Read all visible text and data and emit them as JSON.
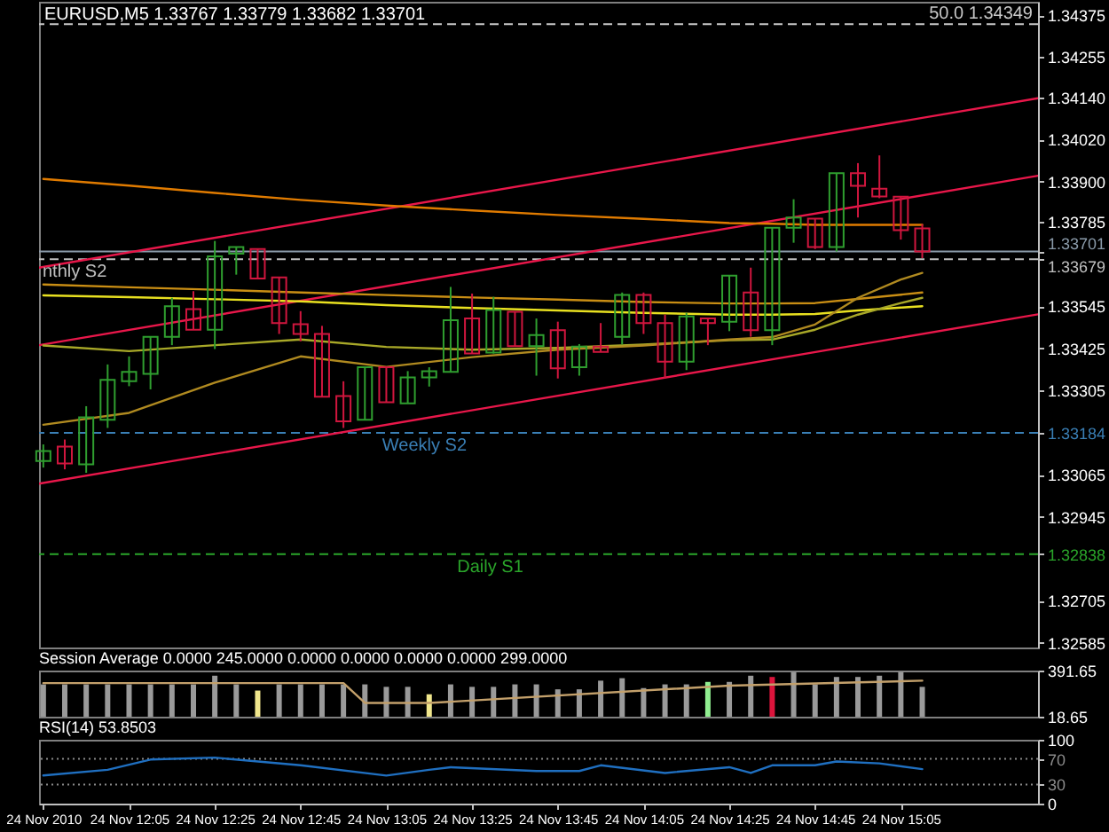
{
  "chart_data": [
    {
      "type": "candlestick",
      "title": "EURUSD,M5 1.33767 1.33779 1.33682 1.33701",
      "x": [
        "2010-11-24T11:45",
        "2010-11-24T11:50",
        "2010-11-24T11:55",
        "2010-11-24T12:00",
        "2010-11-24T12:05",
        "2010-11-24T12:10",
        "2010-11-24T12:15",
        "2010-11-24T12:20",
        "2010-11-24T12:25",
        "2010-11-24T12:30",
        "2010-11-24T12:35",
        "2010-11-24T12:40",
        "2010-11-24T12:45",
        "2010-11-24T12:50",
        "2010-11-24T12:55",
        "2010-11-24T13:00",
        "2010-11-24T13:05",
        "2010-11-24T13:10",
        "2010-11-24T13:15",
        "2010-11-24T13:20",
        "2010-11-24T13:25",
        "2010-11-24T13:30",
        "2010-11-24T13:35",
        "2010-11-24T13:40",
        "2010-11-24T13:45",
        "2010-11-24T13:50",
        "2010-11-24T13:55",
        "2010-11-24T14:00",
        "2010-11-24T14:05",
        "2010-11-24T14:10",
        "2010-11-24T14:15",
        "2010-11-24T14:20",
        "2010-11-24T14:25",
        "2010-11-24T14:30",
        "2010-11-24T14:35",
        "2010-11-24T14:40",
        "2010-11-24T14:45",
        "2010-11-24T14:50",
        "2010-11-24T14:55",
        "2010-11-24T15:00",
        "2010-11-24T15:05",
        "2010-11-24T15:10"
      ],
      "ohlc": [
        [
          1.33104,
          1.33151,
          1.33085,
          1.33132
        ],
        [
          1.33145,
          1.33165,
          1.3308,
          1.33097
        ],
        [
          1.33094,
          1.3326,
          1.3307,
          1.33228
        ],
        [
          1.33221,
          1.33379,
          1.33198,
          1.33335
        ],
        [
          1.33331,
          1.33402,
          1.33317,
          1.33358
        ],
        [
          1.33352,
          1.33458,
          1.33308,
          1.33458
        ],
        [
          1.33458,
          1.33569,
          1.33434,
          1.33545
        ],
        [
          1.33537,
          1.33588,
          1.33478,
          1.33478
        ],
        [
          1.33478,
          1.33731,
          1.33423,
          1.33687
        ],
        [
          1.33695,
          1.33714,
          1.33635,
          1.33714
        ],
        [
          1.33708,
          1.33708,
          1.33624,
          1.33624
        ],
        [
          1.33627,
          1.33627,
          1.33466,
          1.33497
        ],
        [
          1.33494,
          1.33531,
          1.33445,
          1.33466
        ],
        [
          1.33466,
          1.33489,
          1.33287,
          1.33287
        ],
        [
          1.33289,
          1.33331,
          1.33198,
          1.33217
        ],
        [
          1.33221,
          1.33371,
          1.33221,
          1.33371
        ],
        [
          1.33371,
          1.33371,
          1.33271,
          1.33271
        ],
        [
          1.33268,
          1.3336,
          1.33268,
          1.33342
        ],
        [
          1.33342,
          1.33371,
          1.33316,
          1.3336
        ],
        [
          1.33358,
          1.336,
          1.33358,
          1.33505
        ],
        [
          1.3351,
          1.33581,
          1.3341,
          1.3341
        ],
        [
          1.33413,
          1.33572,
          1.3341,
          1.33534
        ],
        [
          1.33529,
          1.33529,
          1.33431,
          1.33431
        ],
        [
          1.33431,
          1.3351,
          1.33347,
          1.33463
        ],
        [
          1.33477,
          1.33501,
          1.33339,
          1.33368
        ],
        [
          1.33371,
          1.33437,
          1.33347,
          1.3343
        ],
        [
          1.3343,
          1.33497,
          1.33415,
          1.33415
        ],
        [
          1.33458,
          1.33584,
          1.33436,
          1.33577
        ],
        [
          1.33577,
          1.33584,
          1.33466,
          1.33497
        ],
        [
          1.33497,
          1.33521,
          1.33339,
          1.33387
        ],
        [
          1.33387,
          1.33526,
          1.33363,
          1.33516
        ],
        [
          1.3351,
          1.3351,
          1.33434,
          1.33497
        ],
        [
          1.33501,
          1.33632,
          1.33474,
          1.33632
        ],
        [
          1.33584,
          1.33655,
          1.33458,
          1.33477
        ],
        [
          1.33477,
          1.33769,
          1.33434,
          1.33769
        ],
        [
          1.33769,
          1.3385,
          1.33726,
          1.33798
        ],
        [
          1.33795,
          1.33795,
          1.33708,
          1.33714
        ],
        [
          1.33714,
          1.33924,
          1.33701,
          1.33924
        ],
        [
          1.33924,
          1.33953,
          1.33798,
          1.33888
        ],
        [
          1.3388,
          1.33975,
          1.33853,
          1.33858
        ],
        [
          1.33857,
          1.33857,
          1.33735,
          1.33762
        ],
        [
          1.33767,
          1.33779,
          1.33682,
          1.33701
        ]
      ],
      "colors": [
        "#2f9e2f",
        "#d0163e",
        "#2f9e2f",
        "#2f9e2f",
        "#2f9e2f",
        "#2f9e2f",
        "#2f9e2f",
        "#d0163e",
        "#2f9e2f",
        "#2f9e2f",
        "#d0163e",
        "#d0163e",
        "#d0163e",
        "#d0163e",
        "#d0163e",
        "#2f9e2f",
        "#d0163e",
        "#2f9e2f",
        "#2f9e2f",
        "#2f9e2f",
        "#d0163e",
        "#2f9e2f",
        "#d0163e",
        "#2f9e2f",
        "#d0163e",
        "#2f9e2f",
        "#d0163e",
        "#2f9e2f",
        "#d0163e",
        "#d0163e",
        "#2f9e2f",
        "#d0163e",
        "#2f9e2f",
        "#d0163e",
        "#2f9e2f",
        "#2f9e2f",
        "#d0163e",
        "#2f9e2f",
        "#d0163e",
        "#d0163e",
        "#d0163e",
        "#d0163e"
      ],
      "series": [
        {
          "type": "line",
          "color": "#e8174a",
          "x": [
            "2010-11-24T11:44",
            "2010-11-24T15:37"
          ],
          "values": [
            1.33655,
            1.34138
          ]
        },
        {
          "type": "line",
          "color": "#e8174a",
          "x": [
            "2010-11-24T11:44",
            "2010-11-24T15:37"
          ],
          "values": [
            1.33434,
            1.33917
          ]
        },
        {
          "type": "line",
          "color": "#e8174a",
          "x": [
            "2010-11-24T11:44",
            "2010-11-24T15:37"
          ],
          "values": [
            1.33039,
            1.33522
          ]
        },
        {
          "type": "line",
          "color": "#e07b00",
          "x": [
            "2010-11-24T11:45",
            "2010-11-24T12:05",
            "2010-11-24T12:25",
            "2010-11-24T12:45",
            "2010-11-24T13:05",
            "2010-11-24T13:25",
            "2010-11-24T13:45",
            "2010-11-24T14:05",
            "2010-11-24T14:25",
            "2010-11-24T14:35",
            "2010-11-24T14:45",
            "2010-11-24T14:55",
            "2010-11-24T15:05",
            "2010-11-24T15:10"
          ],
          "values": [
            1.33908,
            1.33889,
            1.33868,
            1.33848,
            1.33832,
            1.33818,
            1.33805,
            1.33794,
            1.33782,
            1.3378,
            1.33777,
            1.33777,
            1.33777,
            1.33777
          ]
        },
        {
          "type": "line",
          "color": "#c98e14",
          "x": [
            "2010-11-24T11:45",
            "2010-11-24T12:05",
            "2010-11-24T12:25",
            "2010-11-24T12:45",
            "2010-11-24T13:05",
            "2010-11-24T13:25",
            "2010-11-24T13:45",
            "2010-11-24T14:05",
            "2010-11-24T14:25",
            "2010-11-24T14:35",
            "2010-11-24T14:45",
            "2010-11-24T14:55",
            "2010-11-24T15:05",
            "2010-11-24T15:10"
          ],
          "values": [
            1.33607,
            1.33599,
            1.33592,
            1.33584,
            1.33577,
            1.3357,
            1.33564,
            1.33557,
            1.33553,
            1.33553,
            1.33554,
            1.33566,
            1.33578,
            1.33584
          ]
        },
        {
          "type": "line",
          "color": "#e8e020",
          "x": [
            "2010-11-24T11:45",
            "2010-11-24T12:05",
            "2010-11-24T12:25",
            "2010-11-24T12:45",
            "2010-11-24T13:05",
            "2010-11-24T13:25",
            "2010-11-24T13:45",
            "2010-11-24T14:05",
            "2010-11-24T14:25",
            "2010-11-24T14:35",
            "2010-11-24T14:45",
            "2010-11-24T14:55",
            "2010-11-24T15:05",
            "2010-11-24T15:10"
          ],
          "values": [
            1.33576,
            1.33571,
            1.33565,
            1.33559,
            1.33548,
            1.3354,
            1.33533,
            1.33526,
            1.33521,
            1.33521,
            1.33523,
            1.33533,
            1.33541,
            1.33545
          ]
        },
        {
          "type": "line",
          "color": "#a8a828",
          "x": [
            "2010-11-24T11:45",
            "2010-11-24T12:05",
            "2010-11-24T12:25",
            "2010-11-24T12:45",
            "2010-11-24T13:05",
            "2010-11-24T13:25",
            "2010-11-24T13:45",
            "2010-11-24T14:05",
            "2010-11-24T14:25",
            "2010-11-24T14:35",
            "2010-11-24T14:45",
            "2010-11-24T14:55",
            "2010-11-24T15:05",
            "2010-11-24T15:10"
          ],
          "values": [
            1.33433,
            1.33417,
            1.33434,
            1.3345,
            1.33429,
            1.33421,
            1.33426,
            1.33436,
            1.33448,
            1.3345,
            1.33478,
            1.33521,
            1.33554,
            1.33569
          ]
        },
        {
          "type": "line",
          "color": "#b08a20",
          "x": [
            "2010-11-24T11:45",
            "2010-11-24T12:05",
            "2010-11-24T12:25",
            "2010-11-24T12:45",
            "2010-11-24T13:05",
            "2010-11-24T13:25",
            "2010-11-24T13:45",
            "2010-11-24T14:05",
            "2010-11-24T14:25",
            "2010-11-24T14:35",
            "2010-11-24T14:45",
            "2010-11-24T14:55",
            "2010-11-24T15:05",
            "2010-11-24T15:10"
          ],
          "values": [
            1.33207,
            1.33241,
            1.33327,
            1.33402,
            1.33372,
            1.334,
            1.33421,
            1.33433,
            1.3345,
            1.33457,
            1.33493,
            1.33569,
            1.33621,
            1.3364
          ]
        }
      ],
      "xlim": [
        "2010-11-24T11:44",
        "2010-11-24T15:37"
      ],
      "ylim": [
        1.32572,
        1.34413
      ],
      "yticks": [
        1.34375,
        1.34255,
        {
          "value": 1.3414,
          "label": "1.34140"
        },
        {
          "value": 1.3402,
          "label": "1.34020"
        },
        {
          "value": 1.339,
          "label": "1.33900"
        },
        1.33785,
        1.33701,
        1.33679,
        1.33545,
        1.33425,
        1.33305,
        1.33184,
        1.33065,
        1.32945,
        1.32838,
        1.32705,
        1.32585
      ],
      "tick_labels": "y",
      "ref_lines": [
        {
          "axis": "y",
          "value": 1.34349,
          "label": "50.0 1.34349",
          "color": "#c8c8c8",
          "line_style": "dashed"
        },
        {
          "axis": "y",
          "value": 1.33701,
          "color": "#8a9aa9"
        },
        {
          "axis": "y",
          "value": 1.33679,
          "label": "nthly S2",
          "color": "#c0c0c0",
          "line_style": "dashed"
        },
        {
          "axis": "y",
          "value": 1.33184,
          "label": "Weekly S2",
          "color": "#3a7fb5",
          "line_style": "dashed"
        },
        {
          "axis": "y",
          "value": 1.32838,
          "label": "Daily S1",
          "color": "#2aa52a",
          "line_style": "dashed"
        }
      ]
    },
    {
      "type": "bar",
      "title": "Session Average 0.0000 245.0000 0.0000 0.0000 0.0000 0.0000 299.0000",
      "x": [
        "2010-11-24T11:45",
        "2010-11-24T11:50",
        "2010-11-24T11:55",
        "2010-11-24T12:00",
        "2010-11-24T12:05",
        "2010-11-24T12:10",
        "2010-11-24T12:15",
        "2010-11-24T12:20",
        "2010-11-24T12:25",
        "2010-11-24T12:30",
        "2010-11-24T12:35",
        "2010-11-24T12:40",
        "2010-11-24T12:45",
        "2010-11-24T12:50",
        "2010-11-24T12:55",
        "2010-11-24T13:00",
        "2010-11-24T13:05",
        "2010-11-24T13:10",
        "2010-11-24T13:15",
        "2010-11-24T13:20",
        "2010-11-24T13:25",
        "2010-11-24T13:30",
        "2010-11-24T13:35",
        "2010-11-24T13:40",
        "2010-11-24T13:45",
        "2010-11-24T13:50",
        "2010-11-24T13:55",
        "2010-11-24T14:00",
        "2010-11-24T14:05",
        "2010-11-24T14:10",
        "2010-11-24T14:15",
        "2010-11-24T14:20",
        "2010-11-24T14:25",
        "2010-11-24T14:30",
        "2010-11-24T14:35",
        "2010-11-24T14:40",
        "2010-11-24T14:45",
        "2010-11-24T14:50",
        "2010-11-24T14:55",
        "2010-11-24T15:00",
        "2010-11-24T15:05",
        "2010-11-24T15:10"
      ],
      "series": [
        {
          "type": "bar",
          "colors": [
            "#9a9a9a",
            "#9a9a9a",
            "#9a9a9a",
            "#9a9a9a",
            "#9a9a9a",
            "#9a9a9a",
            "#9a9a9a",
            "#9a9a9a",
            "#9a9a9a",
            "#9a9a9a",
            "#f0e68c",
            "#9a9a9a",
            "#9a9a9a",
            "#9a9a9a",
            "#9a9a9a",
            "#9a9a9a",
            "#9a9a9a",
            "#9a9a9a",
            "#f0e68c",
            "#9a9a9a",
            "#9a9a9a",
            "#9a9a9a",
            "#9a9a9a",
            "#9a9a9a",
            "#9a9a9a",
            "#9a9a9a",
            "#9a9a9a",
            "#9a9a9a",
            "#9a9a9a",
            "#9a9a9a",
            "#9a9a9a",
            "#90ee90",
            "#9a9a9a",
            "#9a9a9a",
            "#dc143c",
            "#9a9a9a",
            "#9a9a9a",
            "#9a9a9a",
            "#9a9a9a",
            "#9a9a9a",
            "#9a9a9a",
            "#9a9a9a"
          ],
          "values": [
            280,
            280,
            280,
            280,
            280,
            280,
            280,
            280,
            350,
            280,
            230,
            280,
            280,
            280,
            280,
            280,
            260,
            260,
            200,
            280,
            260,
            260,
            280,
            280,
            240,
            240,
            310,
            330,
            250,
            280,
            280,
            300,
            300,
            350,
            340,
            380,
            280,
            340,
            340,
            350,
            380,
            260
          ]
        },
        {
          "type": "line",
          "color": "#c3a06b",
          "x": [
            "2010-11-24T11:45",
            "2010-11-24T12:55",
            "2010-11-24T13:00",
            "2010-11-24T13:15",
            "2010-11-24T14:25",
            "2010-11-24T15:10"
          ],
          "values": [
            290,
            290,
            130,
            130,
            270,
            310
          ]
        }
      ],
      "xlim": [
        "2010-11-24T11:44",
        "2010-11-24T15:37"
      ],
      "ylim": [
        18.65,
        391.65
      ],
      "yticks": [
        391.65,
        18.65
      ],
      "tick_labels": "y"
    },
    {
      "type": "line",
      "title": "RSI(14) 53.8503",
      "series": [
        {
          "color": "#1f6fc0",
          "x": [
            "2010-11-24T11:45",
            "2010-11-24T12:00",
            "2010-11-24T12:10",
            "2010-11-24T12:25",
            "2010-11-24T12:45",
            "2010-11-24T13:05",
            "2010-11-24T13:15",
            "2010-11-24T13:20",
            "2010-11-24T13:40",
            "2010-11-24T13:50",
            "2010-11-24T13:55",
            "2010-11-24T14:10",
            "2010-11-24T14:25",
            "2010-11-24T14:30",
            "2010-11-24T14:35",
            "2010-11-24T14:45",
            "2010-11-24T14:50",
            "2010-11-24T15:00",
            "2010-11-24T15:10"
          ],
          "values": [
            44,
            53,
            69,
            72,
            60,
            44,
            53,
            57,
            51,
            51,
            60,
            48,
            57,
            48,
            60,
            60,
            66,
            63,
            54
          ]
        }
      ],
      "xlim": [
        "2010-11-24T11:44",
        "2010-11-24T15:37"
      ],
      "ylim": [
        0,
        100
      ],
      "yticks": [
        100,
        70,
        30,
        0
      ],
      "xticks": [
        {
          "value": "2010-11-24T11:45",
          "label": "24 Nov 2010"
        },
        {
          "value": "2010-11-24T12:05",
          "label": "24 Nov 12:05"
        },
        {
          "value": "2010-11-24T12:25",
          "label": "24 Nov 12:25"
        },
        {
          "value": "2010-11-24T12:45",
          "label": "24 Nov 12:45"
        },
        {
          "value": "2010-11-24T13:05",
          "label": "24 Nov 13:05"
        },
        {
          "value": "2010-11-24T13:25",
          "label": "24 Nov 13:25"
        },
        {
          "value": "2010-11-24T13:45",
          "label": "24 Nov 13:45"
        },
        {
          "value": "2010-11-24T14:05",
          "label": "24 Nov 14:05"
        },
        {
          "value": "2010-11-24T14:25",
          "label": "24 Nov 14:25"
        },
        {
          "value": "2010-11-24T14:45",
          "label": "24 Nov 14:45"
        },
        {
          "value": "2010-11-24T15:05",
          "label": "24 Nov 15:05"
        }
      ],
      "ref_lines": [
        {
          "axis": "y",
          "value": 70,
          "color": "#8a8a8a",
          "line_style": "dotted"
        },
        {
          "axis": "y",
          "value": 30,
          "color": "#8a8a8a",
          "line_style": "dotted"
        }
      ]
    }
  ]
}
